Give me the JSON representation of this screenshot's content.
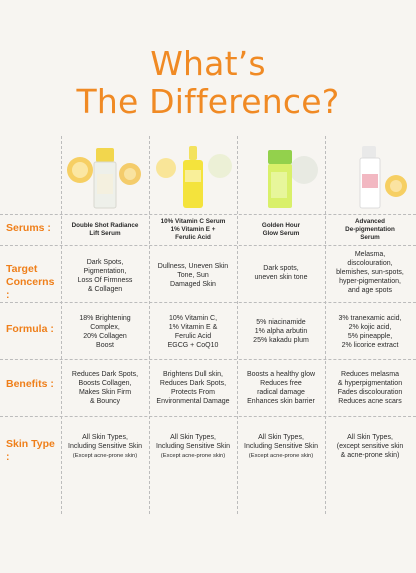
{
  "heading": {
    "line1": "What’s",
    "line2": "The Difference?"
  },
  "rows": {
    "serums": "Serums :",
    "concerns": "Target\nConcerns :",
    "formula": "Formula :",
    "benefits": "Benefits :",
    "skintype": "Skin Type :"
  },
  "products": [
    {
      "name": "Double Shot Radiance\nLift Serum",
      "concerns": "Dark Spots,\nPigmentation,\nLoss Of Firmness\n& Collagen",
      "formula": "18% Brightening\nComplex,\n20% Collagen\nBoost",
      "benefits": "Reduces Dark Spots,\nBoosts Collagen,\nMakes Skin Firm\n& Bouncy",
      "skintype": "All Skin Types,\nIncluding Sensitive Skin",
      "skintype_note": "(Except acne-prone skin)"
    },
    {
      "name": "10% Vitamin C Serum\n1% Vitamin E +\nFerulic Acid",
      "concerns": "Dullness, Uneven Skin\nTone, Sun\nDamaged Skin",
      "formula": "10% Vitamin C,\n1% Vitamin E &\nFerulic Acid\nEGCG + CoQ10",
      "benefits": "Brightens Dull skin,\nReduces Dark Spots,\nProtects From\nEnvironmental Damage",
      "skintype": "All Skin Types,\nIncluding Sensitive Skin",
      "skintype_note": "(Except acne-prone skin)"
    },
    {
      "name": "Golden Hour\nGlow Serum",
      "concerns": "Dark spots,\nuneven skin tone",
      "formula": "5% niacinamide\n1% alpha arbutin\n25% kakadu plum",
      "benefits": "Boosts a healthy glow\nReduces free\nradical damage\nEnhances skin barrier",
      "skintype": "All Skin Types,\nIncluding Sensitive Skin",
      "skintype_note": "(Except acne-prone skin)"
    },
    {
      "name": "Advanced\nDe-pigmentation\nSerum",
      "concerns": "Melasma,\ndiscolouration,\nblemishes, sun-spots,\nhyper-pigmentation,\nand age spots",
      "formula": "3% tranexamic acid,\n2% kojic acid,\n5% pineapple,\n2% licorice extract",
      "benefits": "Reduces melasma\n& hyperpigmentation\nFades discolouration\nReduces acne scars",
      "skintype": "All Skin Types,\n(except sensitive skin\n& acne-prone skin)",
      "skintype_note": ""
    }
  ],
  "colors": {
    "accent": "#f08a24",
    "background": "#f7f5f1"
  }
}
